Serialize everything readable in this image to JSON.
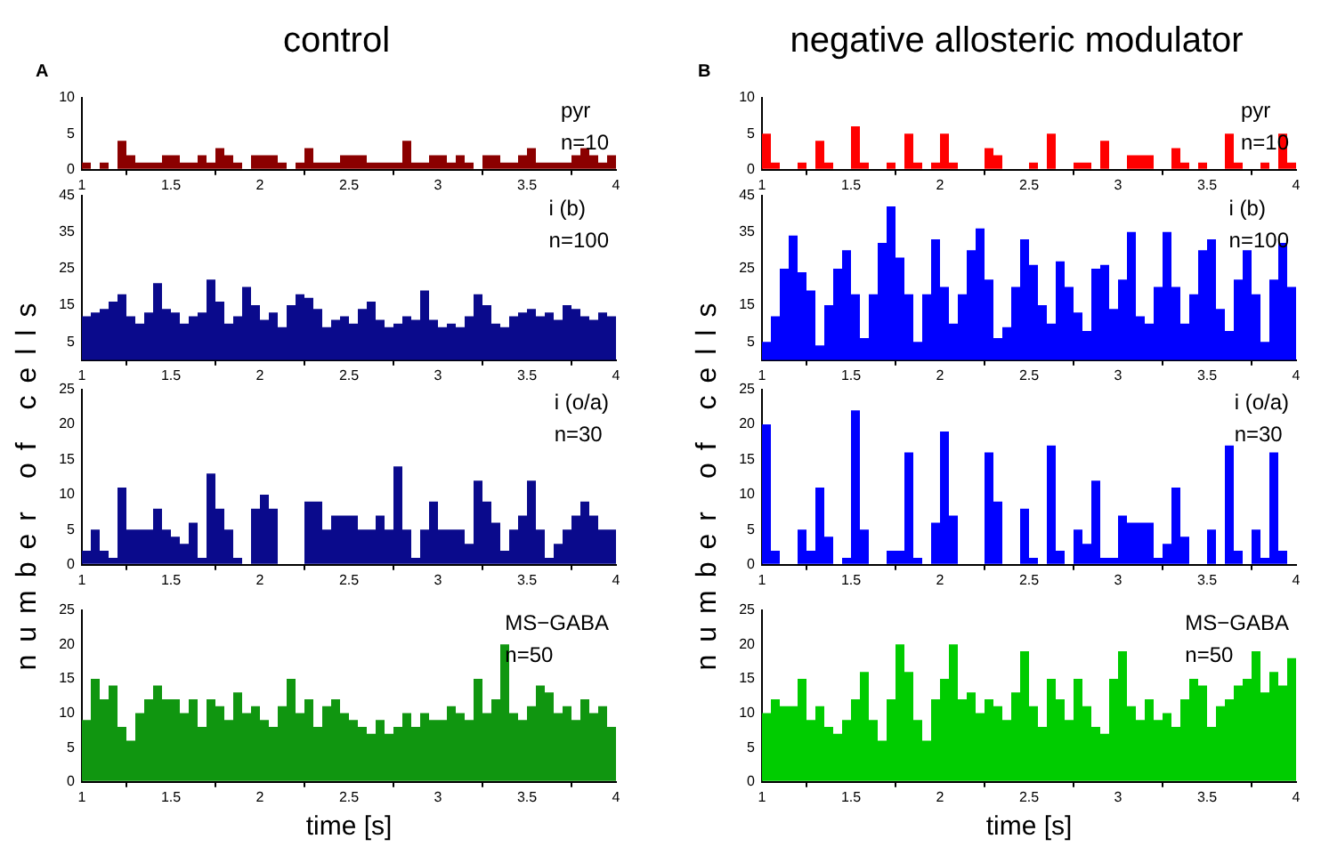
{
  "chart_data": [
    {
      "type": "histogram",
      "title": "control",
      "ylabel": "number of cells",
      "annotations": [
        "A",
        "pyr",
        "n=10"
      ],
      "color": "#8b0000",
      "bins": [
        1,
        1.05,
        1.1,
        1.15,
        1.2,
        1.25,
        1.3,
        1.35,
        1.4,
        1.45,
        1.5,
        1.55,
        1.6,
        1.65,
        1.7,
        1.75,
        1.8,
        1.85,
        1.9,
        1.95,
        2,
        2.05,
        2.1,
        2.15,
        2.2,
        2.25,
        2.3,
        2.35,
        2.4,
        2.45,
        2.5,
        2.55,
        2.6,
        2.65,
        2.7,
        2.75,
        2.8,
        2.85,
        2.9,
        2.95,
        3,
        3.05,
        3.1,
        3.15,
        3.2,
        3.25,
        3.3,
        3.35,
        3.4,
        3.45,
        3.5,
        3.55,
        3.6,
        3.65,
        3.7,
        3.75,
        3.8,
        3.85,
        3.9,
        3.95,
        4
      ],
      "values": [
        1,
        0,
        1,
        0,
        4,
        2,
        1,
        1,
        1,
        2,
        2,
        1,
        1,
        2,
        1,
        3,
        2,
        1,
        0,
        2,
        2,
        2,
        1,
        0,
        1,
        3,
        1,
        1,
        1,
        2,
        2,
        2,
        1,
        1,
        1,
        1,
        4,
        1,
        1,
        2,
        2,
        1,
        2,
        1,
        0,
        2,
        2,
        1,
        1,
        2,
        3,
        1,
        1,
        1,
        1,
        2,
        3,
        2,
        1,
        2
      ],
      "xlim": [
        1,
        4
      ],
      "xticks": [
        1,
        1.5,
        2,
        2.5,
        3,
        3.5,
        4
      ],
      "ylim": [
        0,
        10
      ],
      "yticks": [
        0,
        5,
        10
      ],
      "grid": false
    },
    {
      "type": "histogram",
      "annotations": [
        "i (b)",
        "n=100"
      ],
      "color": "#0a0a8c",
      "bins": [
        1,
        1.05,
        1.1,
        1.15,
        1.2,
        1.25,
        1.3,
        1.35,
        1.4,
        1.45,
        1.5,
        1.55,
        1.6,
        1.65,
        1.7,
        1.75,
        1.8,
        1.85,
        1.9,
        1.95,
        2,
        2.05,
        2.1,
        2.15,
        2.2,
        2.25,
        2.3,
        2.35,
        2.4,
        2.45,
        2.5,
        2.55,
        2.6,
        2.65,
        2.7,
        2.75,
        2.8,
        2.85,
        2.9,
        2.95,
        3,
        3.05,
        3.1,
        3.15,
        3.2,
        3.25,
        3.3,
        3.35,
        3.4,
        3.45,
        3.5,
        3.55,
        3.6,
        3.65,
        3.7,
        3.75,
        3.8,
        3.85,
        3.9,
        3.95,
        4
      ],
      "values": [
        12,
        13,
        14,
        16,
        18,
        12,
        10,
        13,
        21,
        14,
        13,
        10,
        12,
        13,
        22,
        16,
        10,
        12,
        20,
        15,
        11,
        13,
        9,
        15,
        18,
        17,
        14,
        9,
        11,
        12,
        10,
        14,
        16,
        11,
        9,
        10,
        12,
        11,
        19,
        11,
        9,
        10,
        9,
        12,
        18,
        15,
        10,
        9,
        12,
        13,
        14,
        12,
        13,
        11,
        15,
        14,
        12,
        11,
        13,
        12
      ],
      "xlim": [
        1,
        4
      ],
      "xticks": [
        1,
        1.5,
        2,
        2.5,
        3,
        3.5,
        4
      ],
      "ylim": [
        0,
        45
      ],
      "yticks": [
        5,
        15,
        25,
        35,
        45
      ],
      "grid": false
    },
    {
      "type": "histogram",
      "annotations": [
        "i (o/a)",
        "n=30"
      ],
      "color": "#0a0a8c",
      "bins": [
        1,
        1.05,
        1.1,
        1.15,
        1.2,
        1.25,
        1.3,
        1.35,
        1.4,
        1.45,
        1.5,
        1.55,
        1.6,
        1.65,
        1.7,
        1.75,
        1.8,
        1.85,
        1.9,
        1.95,
        2,
        2.05,
        2.1,
        2.15,
        2.2,
        2.25,
        2.3,
        2.35,
        2.4,
        2.45,
        2.5,
        2.55,
        2.6,
        2.65,
        2.7,
        2.75,
        2.8,
        2.85,
        2.9,
        2.95,
        3,
        3.05,
        3.1,
        3.15,
        3.2,
        3.25,
        3.3,
        3.35,
        3.4,
        3.45,
        3.5,
        3.55,
        3.6,
        3.65,
        3.7,
        3.75,
        3.8,
        3.85,
        3.9,
        3.95,
        4
      ],
      "values": [
        2,
        5,
        2,
        1,
        11,
        5,
        5,
        5,
        8,
        5,
        4,
        3,
        6,
        1,
        13,
        8,
        5,
        1,
        0,
        8,
        10,
        8,
        0,
        0,
        0,
        9,
        9,
        5,
        7,
        7,
        7,
        5,
        5,
        7,
        5,
        14,
        5,
        1,
        5,
        9,
        5,
        5,
        5,
        3,
        12,
        9,
        6,
        2,
        5,
        7,
        12,
        5,
        1,
        3,
        5,
        7,
        9,
        7,
        5,
        5
      ],
      "xlim": [
        1,
        4
      ],
      "xticks": [
        1,
        1.5,
        2,
        2.5,
        3,
        3.5,
        4
      ],
      "ylim": [
        0,
        25
      ],
      "yticks": [
        0,
        5,
        10,
        15,
        20,
        25
      ],
      "grid": false
    },
    {
      "type": "histogram",
      "xlabel": "time [s]",
      "annotations": [
        "MS−GABA",
        "n=50"
      ],
      "color": "#109610",
      "bins": [
        1,
        1.05,
        1.1,
        1.15,
        1.2,
        1.25,
        1.3,
        1.35,
        1.4,
        1.45,
        1.5,
        1.55,
        1.6,
        1.65,
        1.7,
        1.75,
        1.8,
        1.85,
        1.9,
        1.95,
        2,
        2.05,
        2.1,
        2.15,
        2.2,
        2.25,
        2.3,
        2.35,
        2.4,
        2.45,
        2.5,
        2.55,
        2.6,
        2.65,
        2.7,
        2.75,
        2.8,
        2.85,
        2.9,
        2.95,
        3,
        3.05,
        3.1,
        3.15,
        3.2,
        3.25,
        3.3,
        3.35,
        3.4,
        3.45,
        3.5,
        3.55,
        3.6,
        3.65,
        3.7,
        3.75,
        3.8,
        3.85,
        3.9,
        3.95,
        4
      ],
      "values": [
        9,
        15,
        12,
        14,
        8,
        6,
        10,
        12,
        14,
        12,
        12,
        10,
        12,
        8,
        12,
        11,
        9,
        13,
        10,
        11,
        9,
        8,
        11,
        15,
        10,
        12,
        8,
        11,
        12,
        10,
        9,
        8,
        7,
        9,
        7,
        8,
        10,
        8,
        10,
        9,
        9,
        11,
        10,
        9,
        15,
        10,
        12,
        20,
        10,
        9,
        11,
        14,
        13,
        10,
        11,
        9,
        12,
        10,
        11,
        8
      ],
      "xlim": [
        1,
        4
      ],
      "xticks": [
        1,
        1.5,
        2,
        2.5,
        3,
        3.5,
        4
      ],
      "ylim": [
        0,
        25
      ],
      "yticks": [
        0,
        5,
        10,
        15,
        20,
        25
      ],
      "grid": false
    },
    {
      "type": "histogram",
      "title": "negative allosteric modulator",
      "ylabel": "number of cells",
      "annotations": [
        "B",
        "pyr",
        "n=10"
      ],
      "color": "#ff0000",
      "bins": [
        1,
        1.05,
        1.1,
        1.15,
        1.2,
        1.25,
        1.3,
        1.35,
        1.4,
        1.45,
        1.5,
        1.55,
        1.6,
        1.65,
        1.7,
        1.75,
        1.8,
        1.85,
        1.9,
        1.95,
        2,
        2.05,
        2.1,
        2.15,
        2.2,
        2.25,
        2.3,
        2.35,
        2.4,
        2.45,
        2.5,
        2.55,
        2.6,
        2.65,
        2.7,
        2.75,
        2.8,
        2.85,
        2.9,
        2.95,
        3,
        3.05,
        3.1,
        3.15,
        3.2,
        3.25,
        3.3,
        3.35,
        3.4,
        3.45,
        3.5,
        3.55,
        3.6,
        3.65,
        3.7,
        3.75,
        3.8,
        3.85,
        3.9,
        3.95,
        4
      ],
      "values": [
        5,
        1,
        0,
        0,
        1,
        0,
        4,
        1,
        0,
        0,
        6,
        1,
        0,
        0,
        1,
        0,
        5,
        1,
        0,
        1,
        5,
        1,
        0,
        0,
        0,
        3,
        2,
        0,
        0,
        0,
        1,
        0,
        5,
        0,
        0,
        1,
        1,
        0,
        4,
        0,
        0,
        2,
        2,
        2,
        0,
        0,
        3,
        1,
        0,
        1,
        0,
        0,
        5,
        1,
        0,
        0,
        1,
        0,
        5,
        1
      ],
      "xlim": [
        1,
        4
      ],
      "xticks": [
        1,
        1.5,
        2,
        2.5,
        3,
        3.5,
        4
      ],
      "ylim": [
        0,
        10
      ],
      "yticks": [
        0,
        5,
        10
      ],
      "grid": false
    },
    {
      "type": "histogram",
      "annotations": [
        "i (b)",
        "n=100"
      ],
      "color": "#0000ff",
      "bins": [
        1,
        1.05,
        1.1,
        1.15,
        1.2,
        1.25,
        1.3,
        1.35,
        1.4,
        1.45,
        1.5,
        1.55,
        1.6,
        1.65,
        1.7,
        1.75,
        1.8,
        1.85,
        1.9,
        1.95,
        2,
        2.05,
        2.1,
        2.15,
        2.2,
        2.25,
        2.3,
        2.35,
        2.4,
        2.45,
        2.5,
        2.55,
        2.6,
        2.65,
        2.7,
        2.75,
        2.8,
        2.85,
        2.9,
        2.95,
        3,
        3.05,
        3.1,
        3.15,
        3.2,
        3.25,
        3.3,
        3.35,
        3.4,
        3.45,
        3.5,
        3.55,
        3.6,
        3.65,
        3.7,
        3.75,
        3.8,
        3.85,
        3.9,
        3.95,
        4
      ],
      "values": [
        5,
        12,
        25,
        34,
        24,
        19,
        4,
        15,
        25,
        30,
        18,
        6,
        18,
        32,
        42,
        28,
        18,
        5,
        18,
        33,
        20,
        10,
        18,
        30,
        36,
        22,
        6,
        9,
        20,
        33,
        26,
        15,
        10,
        27,
        20,
        13,
        8,
        25,
        26,
        14,
        22,
        35,
        12,
        10,
        20,
        35,
        20,
        10,
        18,
        30,
        33,
        14,
        8,
        22,
        30,
        18,
        5,
        22,
        32,
        20
      ],
      "xlim": [
        1,
        4
      ],
      "xticks": [
        1,
        1.5,
        2,
        2.5,
        3,
        3.5,
        4
      ],
      "ylim": [
        0,
        45
      ],
      "yticks": [
        5,
        15,
        25,
        35,
        45
      ],
      "grid": false
    },
    {
      "type": "histogram",
      "annotations": [
        "i (o/a)",
        "n=30"
      ],
      "color": "#0000ff",
      "bins": [
        1,
        1.05,
        1.1,
        1.15,
        1.2,
        1.25,
        1.3,
        1.35,
        1.4,
        1.45,
        1.5,
        1.55,
        1.6,
        1.65,
        1.7,
        1.75,
        1.8,
        1.85,
        1.9,
        1.95,
        2,
        2.05,
        2.1,
        2.15,
        2.2,
        2.25,
        2.3,
        2.35,
        2.4,
        2.45,
        2.5,
        2.55,
        2.6,
        2.65,
        2.7,
        2.75,
        2.8,
        2.85,
        2.9,
        2.95,
        3,
        3.05,
        3.1,
        3.15,
        3.2,
        3.25,
        3.3,
        3.35,
        3.4,
        3.45,
        3.5,
        3.55,
        3.6,
        3.65,
        3.7,
        3.75,
        3.8,
        3.85,
        3.9,
        3.95,
        4
      ],
      "values": [
        20,
        2,
        0,
        0,
        5,
        2,
        11,
        4,
        0,
        1,
        22,
        5,
        0,
        0,
        2,
        2,
        16,
        1,
        0,
        6,
        19,
        7,
        0,
        0,
        0,
        16,
        9,
        0,
        0,
        8,
        1,
        0,
        17,
        2,
        0,
        5,
        3,
        12,
        1,
        1,
        7,
        6,
        6,
        6,
        1,
        3,
        11,
        4,
        0,
        0,
        5,
        0,
        17,
        2,
        0,
        5,
        1,
        16,
        2,
        0
      ],
      "xlim": [
        1,
        4
      ],
      "xticks": [
        1,
        1.5,
        2,
        2.5,
        3,
        3.5,
        4
      ],
      "ylim": [
        0,
        25
      ],
      "yticks": [
        0,
        5,
        10,
        15,
        20,
        25
      ],
      "grid": false
    },
    {
      "type": "histogram",
      "xlabel": "time [s]",
      "annotations": [
        "MS−GABA",
        "n=50"
      ],
      "color": "#00cc00",
      "bins": [
        1,
        1.05,
        1.1,
        1.15,
        1.2,
        1.25,
        1.3,
        1.35,
        1.4,
        1.45,
        1.5,
        1.55,
        1.6,
        1.65,
        1.7,
        1.75,
        1.8,
        1.85,
        1.9,
        1.95,
        2,
        2.05,
        2.1,
        2.15,
        2.2,
        2.25,
        2.3,
        2.35,
        2.4,
        2.45,
        2.5,
        2.55,
        2.6,
        2.65,
        2.7,
        2.75,
        2.8,
        2.85,
        2.9,
        2.95,
        3,
        3.05,
        3.1,
        3.15,
        3.2,
        3.25,
        3.3,
        3.35,
        3.4,
        3.45,
        3.5,
        3.55,
        3.6,
        3.65,
        3.7,
        3.75,
        3.8,
        3.85,
        3.9,
        3.95,
        4
      ],
      "values": [
        10,
        12,
        11,
        11,
        15,
        9,
        11,
        8,
        7,
        9,
        12,
        16,
        9,
        6,
        12,
        20,
        16,
        9,
        6,
        12,
        15,
        20,
        12,
        13,
        10,
        12,
        11,
        9,
        13,
        19,
        11,
        8,
        15,
        12,
        9,
        15,
        11,
        8,
        7,
        15,
        19,
        11,
        9,
        12,
        9,
        10,
        8,
        12,
        15,
        14,
        8,
        11,
        12,
        14,
        15,
        19,
        13,
        16,
        14,
        18
      ],
      "xlim": [
        1,
        4
      ],
      "xticks": [
        1,
        1.5,
        2,
        2.5,
        3,
        3.5,
        4
      ],
      "ylim": [
        0,
        25
      ],
      "yticks": [
        0,
        5,
        10,
        15,
        20,
        25
      ],
      "grid": false
    }
  ]
}
